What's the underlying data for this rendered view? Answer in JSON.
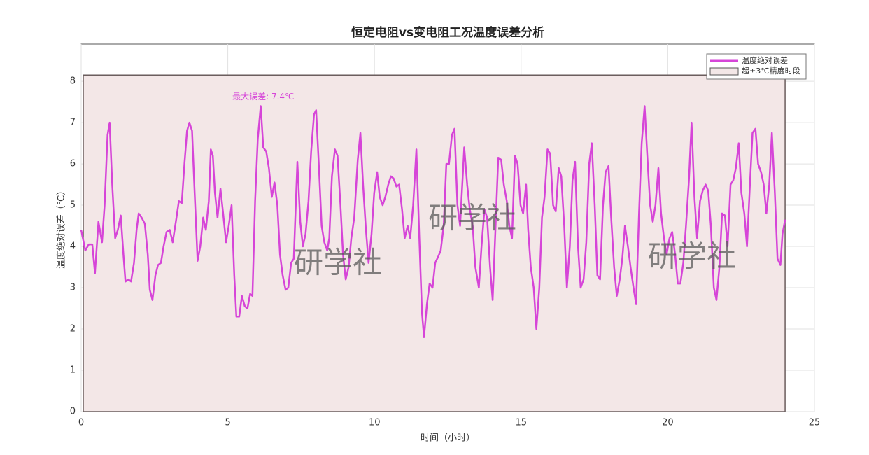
{
  "chart_data": {
    "type": "line",
    "title": "恒定电阻vs变电阻工况温度误差分析",
    "xlabel": "时间（小时）",
    "ylabel": "温度绝对误差（℃）",
    "xlim": [
      0,
      25
    ],
    "ylim": [
      0,
      8.9
    ],
    "xticks": [
      0,
      5,
      10,
      15,
      20,
      25
    ],
    "yticks": [
      0,
      1,
      2,
      3,
      4,
      5,
      6,
      7,
      8
    ],
    "grid": true,
    "legend": "upper right",
    "highlight": {
      "name": "超±3℃精度时段",
      "x": [
        0,
        24
      ],
      "y": [
        0,
        8.15
      ],
      "color": "#f3e7e7"
    },
    "annotation": {
      "text": "最大误差: 7.4℃",
      "x": 6.21,
      "y": 7.4
    },
    "watermarks": [
      "研学社",
      "研学社",
      "研学社"
    ],
    "series": [
      {
        "name": "温度绝对误差",
        "color": "#d645d8",
        "x": [
          0,
          0.14,
          0.26,
          0.38,
          0.47,
          0.59,
          0.71,
          0.8,
          0.9,
          0.97,
          1.06,
          1.16,
          1.25,
          1.35,
          1.44,
          1.51,
          1.61,
          1.7,
          1.8,
          1.89,
          1.96,
          2.06,
          2.17,
          2.27,
          2.34,
          2.43,
          2.53,
          2.62,
          2.72,
          2.81,
          2.91,
          3.02,
          3.12,
          3.24,
          3.33,
          3.43,
          3.52,
          3.61,
          3.69,
          3.78,
          3.87,
          3.97,
          4.06,
          4.16,
          4.25,
          4.35,
          4.42,
          4.49,
          4.56,
          4.65,
          4.75,
          4.84,
          4.94,
          5.03,
          5.13,
          5.22,
          5.29,
          5.39,
          5.48,
          5.58,
          5.67,
          5.76,
          5.84,
          5.93,
          6.02,
          6.12,
          6.21,
          6.31,
          6.4,
          6.5,
          6.59,
          6.69,
          6.78,
          6.87,
          6.97,
          7.06,
          7.16,
          7.25,
          7.37,
          7.47,
          7.56,
          7.65,
          7.75,
          7.84,
          7.94,
          8.01,
          8.1,
          8.2,
          8.29,
          8.39,
          8.46,
          8.55,
          8.65,
          8.74,
          8.84,
          8.93,
          9.02,
          9.12,
          9.21,
          9.31,
          9.43,
          9.52,
          9.61,
          9.71,
          9.8,
          9.9,
          9.99,
          10.09,
          10.18,
          10.28,
          10.37,
          10.47,
          10.56,
          10.65,
          10.75,
          10.84,
          10.94,
          11.03,
          11.13,
          11.22,
          11.32,
          11.43,
          11.53,
          11.62,
          11.69,
          11.79,
          11.88,
          11.98,
          12.07,
          12.17,
          12.26,
          12.36,
          12.45,
          12.54,
          12.64,
          12.73,
          12.83,
          12.92,
          13.06,
          13.16,
          13.25,
          13.35,
          13.44,
          13.56,
          13.65,
          13.75,
          13.84,
          13.94,
          14.03,
          14.13,
          14.22,
          14.32,
          14.41,
          14.51,
          14.6,
          14.69,
          14.79,
          14.88,
          14.98,
          15.07,
          15.17,
          15.24,
          15.33,
          15.43,
          15.52,
          15.62,
          15.71,
          15.8,
          15.9,
          15.99,
          16.09,
          16.18,
          16.28,
          16.37,
          16.47,
          16.56,
          16.66,
          16.75,
          16.84,
          16.94,
          17.03,
          17.13,
          17.22,
          17.32,
          17.41,
          17.51,
          17.6,
          17.69,
          17.79,
          17.88,
          17.98,
          18.07,
          18.17,
          18.26,
          18.36,
          18.45,
          18.54,
          18.64,
          18.73,
          18.83,
          18.92,
          19.02,
          19.11,
          19.21,
          19.3,
          19.4,
          19.49,
          19.58,
          19.68,
          19.77,
          19.87,
          19.96,
          20.06,
          20.15,
          20.25,
          20.34,
          20.43,
          20.53,
          20.62,
          20.72,
          20.81,
          20.91,
          21.0,
          21.1,
          21.19,
          21.29,
          21.38,
          21.47,
          21.57,
          21.66,
          21.76,
          21.85,
          21.95,
          22.04,
          22.14,
          22.23,
          22.32,
          22.42,
          22.51,
          22.61,
          22.7,
          22.8,
          22.89,
          22.99,
          23.08,
          23.18,
          23.27,
          23.36,
          23.46,
          23.55,
          23.65,
          23.74,
          23.84,
          23.91,
          24.0
        ],
        "values": [
          4.4,
          3.9,
          4.05,
          4.05,
          3.35,
          4.6,
          4.1,
          5.0,
          6.7,
          7.0,
          5.5,
          4.2,
          4.4,
          4.75,
          3.8,
          3.15,
          3.2,
          3.15,
          3.6,
          4.4,
          4.8,
          4.7,
          4.55,
          3.8,
          2.95,
          2.7,
          3.3,
          3.55,
          3.6,
          4.0,
          4.35,
          4.4,
          4.1,
          4.65,
          5.1,
          5.05,
          6.0,
          6.8,
          7.0,
          6.8,
          5.3,
          3.65,
          4.0,
          4.7,
          4.4,
          5.1,
          6.35,
          6.2,
          5.3,
          4.7,
          5.4,
          4.8,
          4.1,
          4.5,
          5.0,
          3.3,
          2.3,
          2.3,
          2.8,
          2.55,
          2.5,
          2.85,
          2.8,
          5.1,
          6.6,
          7.4,
          6.4,
          6.3,
          5.9,
          5.2,
          5.55,
          5.0,
          3.8,
          3.3,
          2.95,
          3.0,
          3.6,
          3.7,
          6.05,
          4.6,
          4.0,
          4.3,
          5.1,
          6.3,
          7.2,
          7.3,
          6.0,
          4.5,
          4.1,
          3.9,
          4.2,
          5.7,
          6.35,
          6.2,
          5.0,
          3.8,
          3.2,
          3.5,
          4.2,
          4.7,
          6.1,
          6.75,
          5.5,
          4.4,
          3.6,
          4.3,
          5.3,
          5.8,
          5.2,
          5.0,
          5.2,
          5.5,
          5.7,
          5.65,
          5.45,
          5.5,
          4.9,
          4.2,
          4.5,
          4.2,
          5.0,
          6.35,
          4.2,
          2.4,
          1.8,
          2.6,
          3.1,
          3.0,
          3.6,
          3.75,
          3.9,
          4.5,
          6.0,
          6.0,
          6.7,
          6.85,
          5.0,
          4.5,
          6.4,
          5.5,
          4.9,
          4.5,
          3.5,
          3.0,
          4.0,
          4.9,
          4.7,
          3.5,
          2.7,
          4.5,
          6.15,
          6.1,
          5.5,
          5.1,
          4.5,
          4.2,
          6.2,
          6.0,
          5.0,
          4.8,
          5.5,
          4.4,
          3.5,
          3.0,
          2.0,
          3.0,
          4.7,
          5.2,
          6.35,
          6.25,
          5.0,
          4.85,
          5.9,
          5.7,
          4.5,
          3.0,
          4.0,
          5.6,
          6.05,
          4.0,
          3.0,
          3.2,
          4.1,
          6.0,
          6.5,
          5.0,
          3.3,
          3.2,
          5.0,
          5.8,
          5.95,
          4.7,
          3.5,
          2.8,
          3.2,
          3.7,
          4.5,
          4.0,
          3.5,
          3.0,
          2.6,
          4.8,
          6.5,
          7.4,
          6.2,
          5.0,
          4.6,
          5.0,
          5.9,
          4.8,
          4.2,
          3.8,
          4.2,
          4.35,
          3.8,
          3.1,
          3.1,
          3.6,
          4.5,
          5.6,
          7.0,
          5.2,
          4.2,
          5.1,
          5.35,
          5.5,
          5.35,
          4.5,
          3.0,
          2.7,
          3.5,
          4.8,
          4.75,
          4.0,
          5.5,
          5.6,
          5.9,
          6.5,
          5.3,
          4.8,
          4.0,
          5.5,
          6.75,
          6.85,
          6.0,
          5.8,
          5.5,
          4.8,
          5.5,
          6.75,
          5.3,
          3.7,
          3.55,
          4.3,
          4.65
        ]
      }
    ]
  }
}
